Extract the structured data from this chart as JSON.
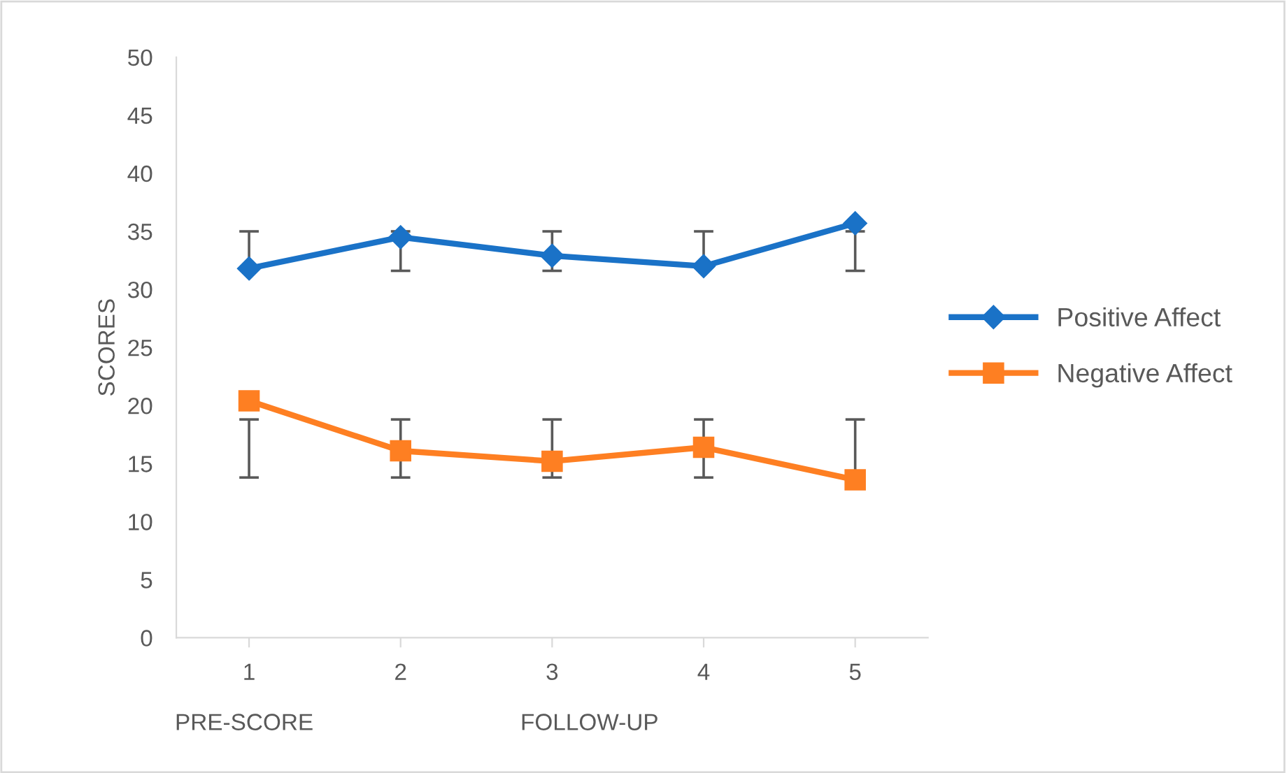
{
  "chart_data": {
    "type": "line",
    "ylabel": "SCORES",
    "categories": [
      "1",
      "2",
      "3",
      "4",
      "5"
    ],
    "series": [
      {
        "name": "Positive Affect",
        "color": "#1a72c7",
        "marker": "diamond",
        "values": [
          31.8,
          34.5,
          32.9,
          32.0,
          35.7
        ],
        "errors": [
          [
            31.8,
            35
          ],
          [
            31.6,
            35
          ],
          [
            31.6,
            35
          ],
          [
            32.0,
            35
          ],
          [
            31.6,
            35
          ]
        ]
      },
      {
        "name": "Negative Affect",
        "color": "#fe7f22",
        "marker": "square",
        "values": [
          20.4,
          16.1,
          15.2,
          16.4,
          13.6
        ],
        "errors": [
          [
            13.8,
            18.8
          ],
          [
            13.8,
            18.8
          ],
          [
            13.8,
            18.8
          ],
          [
            13.8,
            18.8
          ],
          [
            13.6,
            18.8
          ]
        ]
      }
    ],
    "annotations": [
      "PRE-SCORE",
      "FOLLOW-UP"
    ],
    "ylim": [
      0,
      50
    ],
    "yticks": [
      0,
      5,
      10,
      15,
      20,
      25,
      30,
      35,
      40,
      45,
      50
    ],
    "grid": false,
    "legend": "right",
    "line_style": "solid"
  }
}
